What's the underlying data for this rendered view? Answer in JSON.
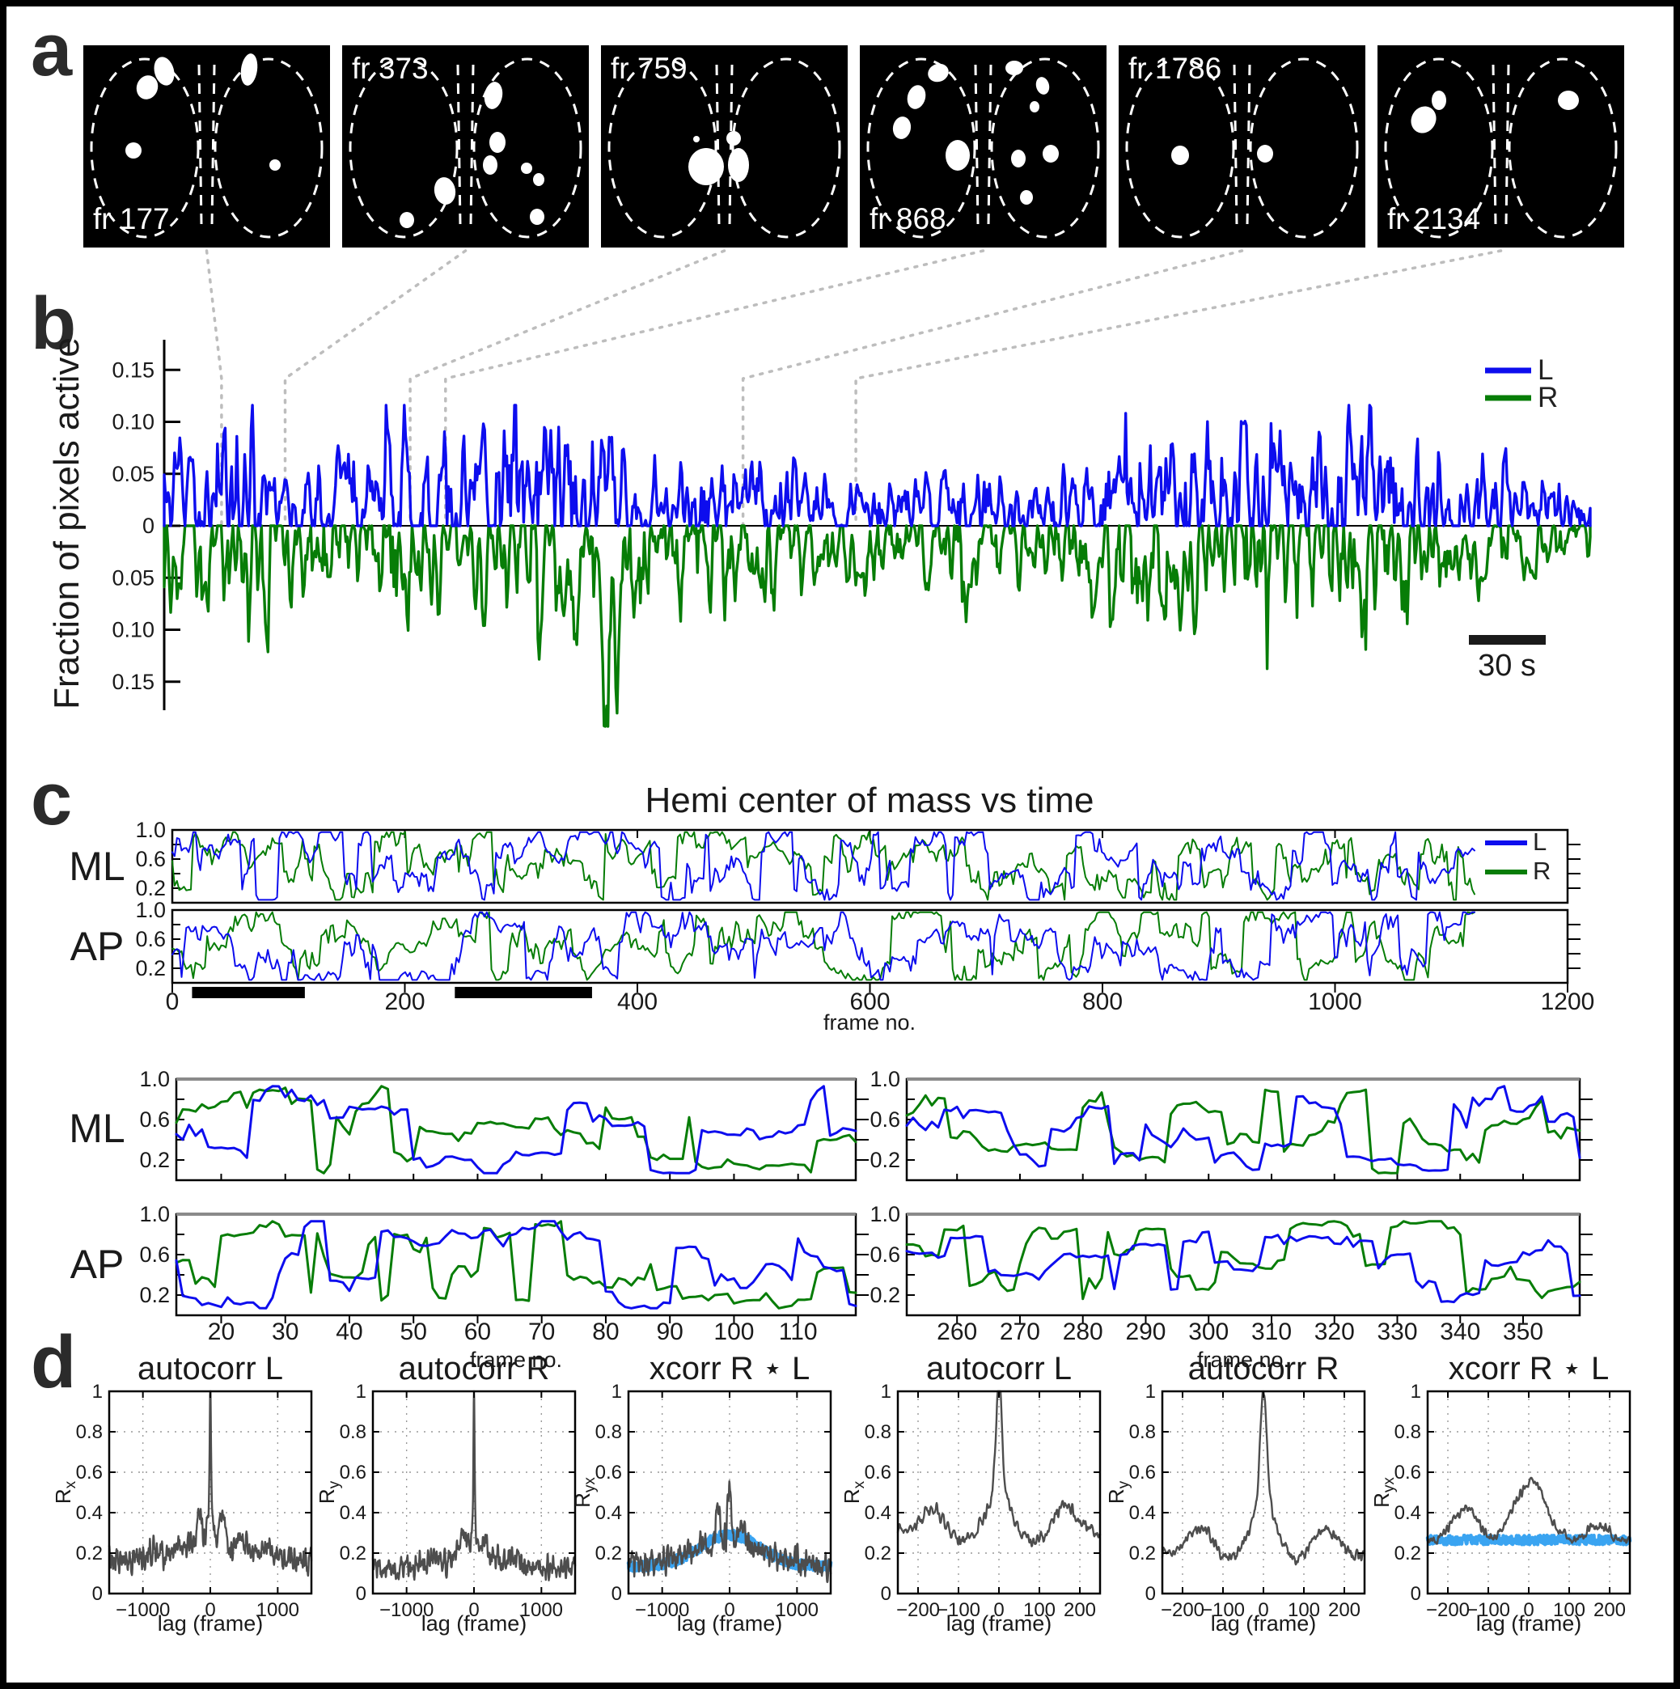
{
  "panel_a": {
    "label": "a",
    "frames": [
      {
        "label": "fr 177",
        "label_pos": "bottom-left",
        "blobs": [
          [
            100,
            32,
            12,
            18,
            -15
          ],
          [
            79,
            52,
            13,
            15,
            20
          ],
          [
            62,
            130,
            10,
            10,
            0
          ],
          [
            205,
            30,
            10,
            20,
            8
          ],
          [
            237,
            148,
            7,
            7,
            0
          ]
        ],
        "frame_no": 177
      },
      {
        "label": "fr 373",
        "label_pos": "top-left",
        "blobs": [
          [
            187,
            62,
            11,
            17,
            10
          ],
          [
            192,
            120,
            10,
            13,
            0
          ],
          [
            183,
            148,
            9,
            12,
            0
          ],
          [
            127,
            180,
            13,
            17,
            -10
          ],
          [
            80,
            216,
            9,
            10,
            0
          ],
          [
            228,
            152,
            7,
            7,
            0
          ],
          [
            243,
            166,
            7,
            8,
            0
          ],
          [
            241,
            212,
            9,
            10,
            0
          ]
        ],
        "frame_no": 373
      },
      {
        "label": "fr 759",
        "label_pos": "top-left",
        "blobs": [
          [
            130,
            150,
            22,
            23,
            0
          ],
          [
            170,
            148,
            13,
            21,
            0
          ],
          [
            118,
            116,
            4,
            4,
            0
          ],
          [
            164,
            115,
            9,
            9,
            0
          ]
        ],
        "frame_no": 759
      },
      {
        "label": "fr 868",
        "label_pos": "bottom-left",
        "blobs": [
          [
            97,
            34,
            13,
            11,
            -20
          ],
          [
            70,
            64,
            11,
            15,
            15
          ],
          [
            52,
            102,
            11,
            14,
            10
          ],
          [
            121,
            136,
            15,
            19,
            0
          ],
          [
            191,
            28,
            11,
            9,
            0
          ],
          [
            226,
            50,
            8,
            11,
            -15
          ],
          [
            216,
            76,
            6,
            7,
            0
          ],
          [
            196,
            140,
            9,
            11,
            0
          ],
          [
            236,
            134,
            10,
            11,
            0
          ],
          [
            206,
            188,
            8,
            9,
            0
          ]
        ],
        "frame_no": 868
      },
      {
        "label": "fr 1786",
        "label_pos": "top-left",
        "blobs": [
          [
            76,
            136,
            11,
            12,
            0
          ],
          [
            181,
            134,
            10,
            11,
            0
          ]
        ],
        "frame_no": 1786
      },
      {
        "label": "fr 2134",
        "label_pos": "bottom-left",
        "blobs": [
          [
            76,
            68,
            9,
            12,
            0
          ],
          [
            57,
            92,
            15,
            17,
            30
          ],
          [
            236,
            68,
            13,
            12,
            0
          ]
        ],
        "frame_no": 2134
      }
    ]
  },
  "panel_b": {
    "label": "b",
    "ylabel": "Fraction of pixels active",
    "ytick_labels": [
      "0.15",
      "0.10",
      "0.05",
      "0",
      "0.05",
      "0.10",
      "0.15"
    ],
    "ytick_values": [
      0.15,
      0.1,
      0.05,
      0,
      -0.05,
      -0.1,
      -0.15
    ],
    "legend": [
      {
        "name": "L",
        "color": "#0d0dee"
      },
      {
        "name": "R",
        "color": "#077d07"
      }
    ],
    "scalebar_label": "30 s",
    "total_frames": 4400
  },
  "panel_c": {
    "label": "c",
    "title": "Hemi center of mass vs time",
    "xlabel": "frame no.",
    "legend": [
      {
        "name": "L",
        "color": "#0d0dee"
      },
      {
        "name": "R",
        "color": "#077d07"
      }
    ],
    "rows": [
      {
        "label": "ML"
      },
      {
        "label": "AP"
      }
    ],
    "zoom_rows": [
      {
        "label": "ML"
      },
      {
        "label": "AP"
      }
    ],
    "yticks": [
      "1.0",
      "0.6",
      "0.2"
    ],
    "ytick_values": [
      1.0,
      0.6,
      0.2
    ],
    "wide_xticks": [
      "0",
      "200",
      "400",
      "600",
      "800",
      "1000",
      "1200"
    ],
    "wide_xtick_values": [
      0,
      200,
      400,
      600,
      800,
      1000,
      1200
    ],
    "zoom_left_xticks": [
      "20",
      "30",
      "40",
      "50",
      "60",
      "70",
      "80",
      "90",
      "100",
      "110"
    ],
    "zoom_left_xtick_values": [
      20,
      30,
      40,
      50,
      60,
      70,
      80,
      90,
      100,
      110
    ],
    "zoom_right_xticks": [
      "260",
      "270",
      "280",
      "290",
      "300",
      "310",
      "320",
      "330",
      "340",
      "350"
    ],
    "zoom_right_xtick_values": [
      260,
      270,
      280,
      290,
      300,
      310,
      320,
      330,
      340,
      350
    ],
    "marker_bars_frames": [
      [
        17,
        114
      ],
      [
        243,
        361
      ]
    ]
  },
  "panel_d": {
    "label": "d",
    "xlabel": "lag (frame)",
    "ytick_labels": [
      "0",
      "0.2",
      "0.4",
      "0.6",
      "0.8",
      "1"
    ],
    "ytick_values": [
      0,
      0.2,
      0.4,
      0.6,
      0.8,
      1
    ],
    "xticks_wide_labels": [
      "−1000",
      "0",
      "1000"
    ],
    "xticks_wide_values": [
      -1000,
      0,
      1000
    ],
    "xticks_zoom_labels": [
      "−200",
      "−100",
      "0",
      "100",
      "200"
    ],
    "xticks_zoom_values": [
      -200,
      -100,
      0,
      100,
      200
    ],
    "plots": [
      {
        "title": "autocorr L",
        "ylabel_main": "R",
        "ylabel_sub": "x",
        "lag_range": [
          -1500,
          1500
        ],
        "kind": "auto_wide_L"
      },
      {
        "title": "autocorr R",
        "ylabel_main": "R",
        "ylabel_sub": "y",
        "lag_range": [
          -1500,
          1500
        ],
        "kind": "auto_wide_R"
      },
      {
        "title": "xcorr R ⋆ L",
        "ylabel_main": "R",
        "ylabel_sub": "yx",
        "lag_range": [
          -1500,
          1500
        ],
        "kind": "xcorr_wide"
      },
      {
        "title": "autocorr L",
        "ylabel_main": "R",
        "ylabel_sub": "x",
        "lag_range": [
          -250,
          250
        ],
        "kind": "auto_zoom_L"
      },
      {
        "title": "autocorr R",
        "ylabel_main": "R",
        "ylabel_sub": "y",
        "lag_range": [
          -250,
          250
        ],
        "kind": "auto_zoom_R"
      },
      {
        "title": "xcorr R ⋆ L",
        "ylabel_main": "R",
        "ylabel_sub": "yx",
        "lag_range": [
          -250,
          250
        ],
        "kind": "xcorr_zoom"
      }
    ]
  },
  "colors": {
    "left_trace": "#0d0dee",
    "right_trace": "#077d07",
    "shuffle_overlay": "#2f9ff0",
    "corr_trace": "#4d4d4d",
    "grid_dots": "#999999",
    "connector": "#bdbdbd",
    "marker_bar": "#000000",
    "frame_bg": "#000000",
    "frame_outline": "#ffffff"
  },
  "chart_data": [
    {
      "id": "b_fraction_active",
      "type": "line",
      "ylabel": "Fraction of pixels active",
      "yticks": [
        0.15,
        0.1,
        0.05,
        0,
        0.05,
        0.1,
        0.15
      ],
      "series": [
        {
          "name": "L",
          "color": "#0d0dee",
          "direction": "up",
          "typical_burst_amplitude": [
            0.02,
            0.11
          ],
          "max": 0.115
        },
        {
          "name": "R",
          "color": "#077d07",
          "direction": "down",
          "typical_burst_amplitude": [
            0.02,
            0.12
          ],
          "max": 0.19
        }
      ],
      "x_axis": "time (no axis drawn; scale bar = 30 s)",
      "scalebar": "30 s",
      "annotated_frames": [
        177,
        373,
        759,
        868,
        1786,
        2134
      ],
      "legend_position": "upper right",
      "approx_burst_envelope_L": [
        [
          0,
          0.5
        ],
        [
          255,
          1.0
        ],
        [
          360,
          0.3
        ],
        [
          480,
          0.55
        ],
        [
          720,
          0.8
        ],
        [
          800,
          0.9
        ],
        [
          1040,
          0.9
        ],
        [
          1280,
          0.85
        ],
        [
          1520,
          0.5
        ],
        [
          1760,
          0.55
        ],
        [
          2080,
          0.35
        ],
        [
          2400,
          0.45
        ],
        [
          2720,
          0.35
        ],
        [
          2960,
          0.7
        ],
        [
          3280,
          0.8
        ],
        [
          3440,
          0.85
        ],
        [
          3600,
          0.9
        ],
        [
          3760,
          1.0
        ],
        [
          3920,
          0.55
        ],
        [
          4160,
          0.45
        ],
        [
          4400,
          0.3
        ]
      ],
      "approx_burst_envelope_R": [
        [
          0,
          0.6
        ],
        [
          330,
          0.8
        ],
        [
          560,
          0.45
        ],
        [
          720,
          0.7
        ],
        [
          960,
          0.55
        ],
        [
          1280,
          0.9
        ],
        [
          1360,
          1.0
        ],
        [
          1520,
          0.55
        ],
        [
          1680,
          0.7
        ],
        [
          2080,
          0.4
        ],
        [
          2400,
          0.5
        ],
        [
          2720,
          0.4
        ],
        [
          2960,
          0.75
        ],
        [
          3200,
          0.8
        ],
        [
          3440,
          0.8
        ],
        [
          3760,
          0.8
        ],
        [
          3920,
          0.5
        ],
        [
          4160,
          0.4
        ],
        [
          4400,
          0.3
        ]
      ],
      "deep_R_event_frame": 1372
    },
    {
      "id": "c_hemi_com",
      "type": "line",
      "title": "Hemi center of mass vs time",
      "xlabel": "frame no.",
      "xlim": [
        0,
        1200
      ],
      "data_extent": [
        0,
        1120
      ],
      "ylim": [
        0,
        1
      ],
      "yticks": [
        0.2,
        0.6,
        1.0
      ],
      "subplots": [
        "ML",
        "AP"
      ],
      "series": [
        "L",
        "R"
      ],
      "description": "Normalized ML and AP center-of-mass coordinates per hemisphere; dense jagged traces spanning 0.05-0.95",
      "highlight_bars_frames": [
        [
          17,
          114
        ],
        [
          243,
          361
        ]
      ]
    },
    {
      "id": "c_hemi_com_zoom_left",
      "type": "line",
      "xlabel": "frame no.",
      "xlim": [
        13,
        119
      ],
      "xticks": [
        20,
        30,
        40,
        50,
        60,
        70,
        80,
        90,
        100,
        110
      ],
      "ylim": [
        0,
        1
      ],
      "yticks": [
        0.2,
        0.6,
        1.0
      ],
      "subplots": [
        "ML",
        "AP"
      ],
      "series": [
        "L",
        "R"
      ],
      "description": "Zoom of first highlighted window; step-like alternating L/R traces between 0.1 and 0.85"
    },
    {
      "id": "c_hemi_com_zoom_right",
      "type": "line",
      "xlabel": "frame no.",
      "xlim": [
        252,
        359
      ],
      "xticks": [
        260,
        270,
        280,
        290,
        300,
        310,
        320,
        330,
        340,
        350
      ],
      "ylim": [
        0,
        1
      ],
      "yticks": [
        0.2,
        0.6,
        1.0
      ],
      "subplots": [
        "ML",
        "AP"
      ],
      "series": [
        "L",
        "R"
      ],
      "description": "Zoom of second highlighted window"
    },
    {
      "id": "d_autocorr_L_wide",
      "type": "line",
      "title": "autocorr L",
      "xlabel": "lag (frame)",
      "xlim": [
        -1500,
        1500
      ],
      "xticks": [
        -1000,
        0,
        1000
      ],
      "ylabel": "Rx",
      "ylim": [
        0,
        1
      ],
      "yticks": [
        0,
        0.2,
        0.4,
        0.6,
        0.8,
        1
      ],
      "key_values": {
        "baseline": 0.18,
        "side_peaks_at": [
          -170,
          170
        ],
        "side_peak_value": 0.42,
        "center_peak": 1.0
      }
    },
    {
      "id": "d_autocorr_R_wide",
      "type": "line",
      "title": "autocorr R",
      "xlabel": "lag (frame)",
      "xlim": [
        -1500,
        1500
      ],
      "xticks": [
        -1000,
        0,
        1000
      ],
      "ylabel": "Ry",
      "ylim": [
        0,
        1
      ],
      "yticks": [
        0,
        0.2,
        0.4,
        0.6,
        0.8,
        1
      ],
      "key_values": {
        "baseline": 0.14,
        "side_peaks_at": [
          -170,
          170
        ],
        "side_peak_value": 0.27,
        "center_peak": 1.0
      }
    },
    {
      "id": "d_xcorr_wide",
      "type": "line",
      "title": "xcorr R ⋆ L",
      "xlabel": "lag (frame)",
      "xlim": [
        -1500,
        1500
      ],
      "xticks": [
        -1000,
        0,
        1000
      ],
      "ylabel": "Ryx",
      "ylim": [
        0,
        1
      ],
      "yticks": [
        0,
        0.2,
        0.4,
        0.6,
        0.8,
        1
      ],
      "key_values": {
        "gray_baseline": 0.15,
        "gray_peak_at_0": 0.55,
        "gray_side_peak": [
          -170,
          0.41
        ],
        "blue_band_edges": 0.14,
        "blue_band_center": 0.29
      }
    },
    {
      "id": "d_autocorr_L_zoom",
      "type": "line",
      "title": "autocorr L",
      "xlabel": "lag (frame)",
      "xlim": [
        -250,
        250
      ],
      "xticks": [
        -200,
        -100,
        0,
        100,
        200
      ],
      "ylabel": "Rx",
      "ylim": [
        0,
        1
      ],
      "yticks": [
        0,
        0.2,
        0.4,
        0.6,
        0.8,
        1
      ],
      "key_values": {
        "baseline": 0.3,
        "side_peaks_at": [
          -160,
          160
        ],
        "side_peak_value": 0.43,
        "dips_at": [
          -110,
          110
        ],
        "dip_value": 0.26,
        "center_peak": 1.0
      }
    },
    {
      "id": "d_autocorr_R_zoom",
      "type": "line",
      "title": "autocorr R",
      "xlabel": "lag (frame)",
      "xlim": [
        -250,
        250
      ],
      "xticks": [
        -200,
        -100,
        0,
        100,
        200
      ],
      "ylabel": "Ry",
      "ylim": [
        0,
        1
      ],
      "yticks": [
        0,
        0.2,
        0.4,
        0.6,
        0.8,
        1
      ],
      "key_values": {
        "baseline": 0.19,
        "side_peaks_at": [
          -155,
          160
        ],
        "side_peak_value": 0.33,
        "center_peak": 1.0
      }
    },
    {
      "id": "d_xcorr_zoom",
      "type": "line",
      "title": "xcorr R ⋆ L",
      "xlabel": "lag (frame)",
      "xlim": [
        -250,
        250
      ],
      "xticks": [
        -200,
        -100,
        0,
        100,
        200
      ],
      "ylabel": "Ryx",
      "ylim": [
        0,
        1
      ],
      "yticks": [
        0,
        0.2,
        0.4,
        0.6,
        0.8,
        1
      ],
      "key_values": {
        "gray_hump_at": [
          -155,
          0.42
        ],
        "gray_peak_at_0": 0.55,
        "gray_small_bump": [
          170,
          0.35
        ],
        "blue_flat_band": 0.27
      }
    }
  ]
}
